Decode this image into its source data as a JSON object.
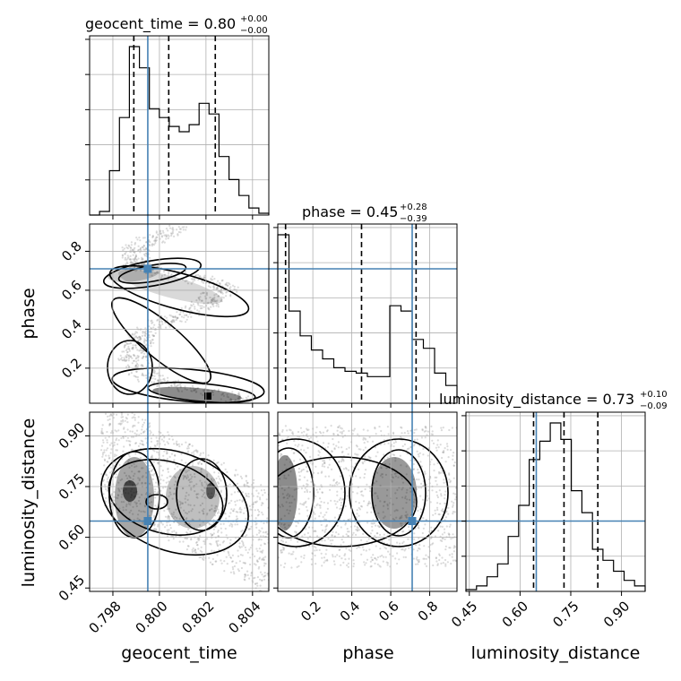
{
  "chart_data": {
    "type": "corner",
    "parameters": [
      "geocent_time",
      "phase",
      "luminosity_distance"
    ],
    "titles": [
      {
        "parameter": "geocent_time",
        "prefix": "geocent_time = ",
        "median": "0.80",
        "upper": "+0.00",
        "lower": "−0.00"
      },
      {
        "parameter": "phase",
        "prefix": "phase = ",
        "median": "0.45",
        "upper": "+0.28",
        "lower": "−0.39"
      },
      {
        "parameter": "luminosity_distance",
        "prefix": "luminosity_distance = ",
        "median": "0.73",
        "upper": "+0.10",
        "lower": "−0.09"
      }
    ],
    "axis_labels": {
      "geocent_time": "geocent_time",
      "phase": "phase",
      "luminosity_distance": "luminosity_distance"
    },
    "ranges": {
      "geocent_time": [
        0.797,
        0.8047
      ],
      "phase": [
        0.02,
        0.94
      ],
      "luminosity_distance": [
        0.44,
        0.97
      ]
    },
    "ticks": {
      "geocent_time": [
        0.798,
        0.8,
        0.802,
        0.804
      ],
      "phase": [
        0.2,
        0.4,
        0.6,
        0.8
      ],
      "luminosity_distance": [
        0.45,
        0.6,
        0.75,
        0.9
      ]
    },
    "tick_labels": {
      "geocent_time": [
        "0.798",
        "0.800",
        "0.802",
        "0.804"
      ],
      "phase": [
        "0.2",
        "0.4",
        "0.6",
        "0.8"
      ],
      "luminosity_distance": [
        "0.45",
        "0.60",
        "0.75",
        "0.90"
      ]
    },
    "truths": {
      "geocent_time": 0.7995,
      "phase": 0.71,
      "luminosity_distance": 0.648
    },
    "quantiles": {
      "geocent_time": [
        0.7989,
        0.8004,
        0.8024
      ],
      "phase": [
        0.06,
        0.45,
        0.73
      ],
      "luminosity_distance": [
        0.64,
        0.73,
        0.83
      ]
    },
    "histograms": {
      "geocent_time": [
        0.0,
        0.02,
        0.25,
        0.55,
        0.95,
        0.83,
        0.6,
        0.55,
        0.5,
        0.47,
        0.51,
        0.63,
        0.57,
        0.33,
        0.2,
        0.11,
        0.04,
        0.01
      ],
      "phase": [
        0.95,
        0.52,
        0.38,
        0.3,
        0.25,
        0.2,
        0.18,
        0.17,
        0.15,
        0.15,
        0.55,
        0.52,
        0.36,
        0.31,
        0.17,
        0.1
      ],
      "luminosity_distance": [
        0.01,
        0.03,
        0.08,
        0.15,
        0.3,
        0.47,
        0.72,
        0.82,
        0.92,
        0.83,
        0.55,
        0.43,
        0.23,
        0.17,
        0.11,
        0.06,
        0.03
      ]
    },
    "grid": true,
    "marker_color": "#4682b4",
    "contour_color": "#000000"
  }
}
